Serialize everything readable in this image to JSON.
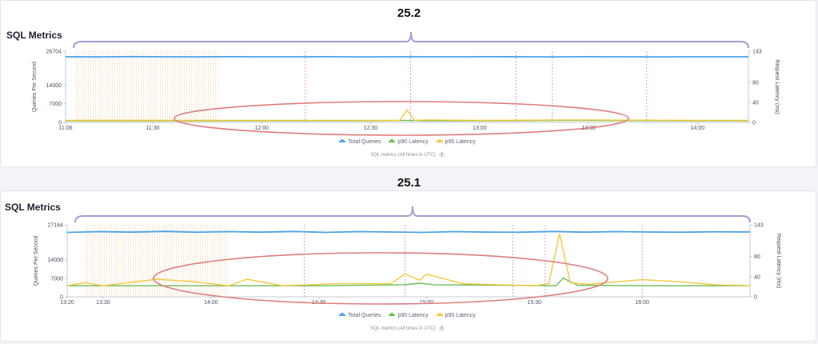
{
  "colors": {
    "total_queries": "#4aa3e8",
    "p90_latency": "#6cbb5a",
    "p95_latency": "#f5c93a",
    "brace": "#a59ad6",
    "ellipse": "#e07c7c",
    "grid_marker": "#e38bdc",
    "range_marker": "#f2b36b"
  },
  "top": {
    "version": "25.2",
    "title": "SQL Metrics",
    "footnote": "SQL metrics (All times in UTC)",
    "info_icon": "i"
  },
  "bottom": {
    "version": "25.1",
    "title": "SQL Metrics",
    "footnote": "SQL metrics (All times in UTC)",
    "info_icon": "i"
  },
  "legend": [
    "Total Queries",
    "p90 Latency",
    "p95 Latency"
  ],
  "chart_data": [
    {
      "type": "line",
      "title": "SQL Metrics",
      "ylabel": "Queries Per Second",
      "y2label": "Request Latency (ms)",
      "ylim": [
        0,
        26704
      ],
      "y_ticks": [
        "0",
        "7000",
        "14000",
        "26704"
      ],
      "y_tick_values": [
        0,
        7000,
        14000,
        26704
      ],
      "y2lim": [
        0,
        143
      ],
      "y2_ticks": [
        "0",
        "40",
        "80",
        "143"
      ],
      "y2_tick_values": [
        0,
        40,
        80,
        143
      ],
      "xlim": [
        "11:06",
        "14:14"
      ],
      "x_ticks": [
        "11:06",
        "11:30",
        "12:00",
        "12:30",
        "13:00",
        "13:30",
        "14:00"
      ],
      "event_markers": [
        "12:12",
        "12:41",
        "13:10",
        "13:20",
        "13:46"
      ],
      "shaded_range": [
        "11:09",
        "11:48"
      ],
      "series": [
        {
          "name": "Total Queries",
          "axis": "left",
          "x": [
            "11:06",
            "11:15",
            "11:24",
            "11:33",
            "11:42",
            "11:51",
            "12:00",
            "12:09",
            "12:18",
            "12:27",
            "12:36",
            "12:45",
            "12:54",
            "13:03",
            "13:12",
            "13:21",
            "13:30",
            "13:39",
            "13:48",
            "13:57",
            "14:06",
            "14:14"
          ],
          "values": [
            24600,
            24550,
            24650,
            24600,
            24580,
            24620,
            24600,
            24590,
            24640,
            24570,
            24610,
            24600,
            24590,
            24620,
            24600,
            24580,
            24620,
            24600,
            24570,
            24610,
            24600,
            24590
          ]
        },
        {
          "name": "p90 Latency",
          "axis": "right",
          "x": [
            "11:06",
            "11:30",
            "12:00",
            "12:30",
            "12:40",
            "12:45",
            "13:00",
            "13:25",
            "14:00",
            "14:14"
          ],
          "values": [
            3,
            3,
            3,
            3,
            4,
            3,
            3,
            4,
            3,
            3
          ]
        },
        {
          "name": "p95 Latency",
          "axis": "right",
          "x": [
            "11:06",
            "11:30",
            "12:00",
            "12:30",
            "12:38",
            "12:40",
            "12:42",
            "12:45",
            "13:00",
            "13:25",
            "14:00",
            "14:14"
          ],
          "values": [
            4,
            4,
            4,
            4,
            4,
            25,
            4,
            5,
            4,
            5,
            4,
            4
          ]
        }
      ]
    },
    {
      "type": "line",
      "title": "SQL Metrics",
      "ylabel": "Queries Per Second",
      "y2label": "Request Latency (ms)",
      "ylim": [
        0,
        27164
      ],
      "y_ticks": [
        "0",
        "7000",
        "14000",
        "27164"
      ],
      "y_tick_values": [
        0,
        7000,
        14000,
        27164
      ],
      "y2lim": [
        0,
        143
      ],
      "y2_ticks": [
        "0",
        "40",
        "80",
        "143"
      ],
      "y2_tick_values": [
        0,
        40,
        80,
        143
      ],
      "xlim": [
        "13:20",
        "16:30"
      ],
      "x_ticks": [
        "13:20",
        "13:30",
        "14:00",
        "14:30",
        "15:00",
        "15:30",
        "16:00"
      ],
      "event_markers": [
        "14:26",
        "14:54",
        "15:24",
        "15:33",
        "16:00"
      ],
      "shaded_range": [
        "13:25",
        "14:05"
      ],
      "series": [
        {
          "name": "Total Queries",
          "axis": "left",
          "x": [
            "13:20",
            "13:29",
            "13:38",
            "13:47",
            "13:56",
            "14:05",
            "14:14",
            "14:23",
            "14:32",
            "14:41",
            "14:50",
            "14:59",
            "15:08",
            "15:17",
            "15:26",
            "15:35",
            "15:44",
            "15:53",
            "16:02",
            "16:11",
            "16:20",
            "16:30"
          ],
          "values": [
            24300,
            24600,
            24400,
            24700,
            24350,
            24600,
            24400,
            24650,
            24300,
            24600,
            24450,
            24300,
            24600,
            24400,
            24350,
            24650,
            24400,
            24600,
            24450,
            24350,
            24550,
            24450
          ]
        },
        {
          "name": "p90 Latency",
          "axis": "right",
          "x": [
            "13:20",
            "13:40",
            "14:00",
            "14:30",
            "14:54",
            "14:58",
            "15:02",
            "15:20",
            "15:36",
            "15:38",
            "15:42",
            "16:00",
            "16:30"
          ],
          "values": [
            22,
            22,
            22,
            22,
            24,
            27,
            24,
            23,
            22,
            37,
            23,
            22,
            22
          ]
        },
        {
          "name": "p95 Latency",
          "axis": "right",
          "x": [
            "13:20",
            "13:25",
            "13:30",
            "13:45",
            "13:55",
            "14:05",
            "14:10",
            "14:20",
            "14:35",
            "14:50",
            "14:54",
            "14:58",
            "15:00",
            "15:10",
            "15:30",
            "15:34",
            "15:37",
            "15:40",
            "15:45",
            "16:00",
            "16:10",
            "16:20",
            "16:30"
          ],
          "values": [
            22,
            28,
            22,
            35,
            30,
            22,
            35,
            22,
            26,
            26,
            45,
            33,
            45,
            26,
            22,
            26,
            125,
            28,
            25,
            34,
            30,
            24,
            22
          ]
        }
      ]
    }
  ]
}
